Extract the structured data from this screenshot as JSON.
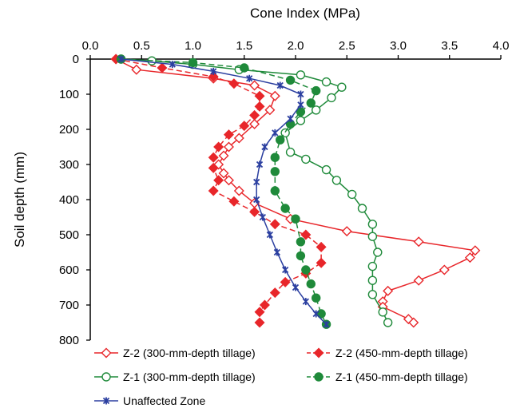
{
  "chart_data": {
    "type": "line",
    "xlabel": "Cone Index (MPa)",
    "ylabel": "Soil depth (mm)",
    "xlim": [
      0,
      4.0
    ],
    "ylim": [
      0,
      800
    ],
    "y_reversed": true,
    "x_axis_position": "top",
    "x_ticks": [
      "0.0",
      "0.5",
      "1.0",
      "1.5",
      "2.0",
      "2.5",
      "3.0",
      "3.5",
      "4.0"
    ],
    "y_ticks": [
      "0",
      "100",
      "200",
      "300",
      "400",
      "500",
      "600",
      "700",
      "800"
    ],
    "grid": false,
    "legend_position": "bottom",
    "series": [
      {
        "name": "Z-2 (300-mm-depth tillage)",
        "color": "#e8262a",
        "marker": "open-diamond",
        "dashed": false,
        "points": [
          [
            0.25,
            0
          ],
          [
            0.45,
            30
          ],
          [
            1.2,
            55
          ],
          [
            1.6,
            75
          ],
          [
            1.8,
            105
          ],
          [
            1.75,
            145
          ],
          [
            1.6,
            185
          ],
          [
            1.45,
            225
          ],
          [
            1.35,
            250
          ],
          [
            1.3,
            275
          ],
          [
            1.25,
            300
          ],
          [
            1.3,
            325
          ],
          [
            1.35,
            345
          ],
          [
            1.45,
            375
          ],
          [
            1.6,
            410
          ],
          [
            1.95,
            455
          ],
          [
            2.5,
            490
          ],
          [
            3.2,
            520
          ],
          [
            3.75,
            545
          ],
          [
            3.7,
            565
          ],
          [
            3.45,
            600
          ],
          [
            3.2,
            630
          ],
          [
            2.9,
            660
          ],
          [
            2.85,
            690
          ],
          [
            2.85,
            705
          ],
          [
            3.1,
            740
          ],
          [
            3.15,
            750
          ]
        ]
      },
      {
        "name": "Z-2 (450-mm-depth tillage)",
        "color": "#e8262a",
        "marker": "filled-diamond",
        "dashed": true,
        "points": [
          [
            0.25,
            0
          ],
          [
            0.7,
            25
          ],
          [
            1.2,
            50
          ],
          [
            1.4,
            70
          ],
          [
            1.65,
            105
          ],
          [
            1.65,
            135
          ],
          [
            1.6,
            160
          ],
          [
            1.5,
            190
          ],
          [
            1.35,
            215
          ],
          [
            1.25,
            250
          ],
          [
            1.2,
            280
          ],
          [
            1.2,
            310
          ],
          [
            1.25,
            345
          ],
          [
            1.2,
            375
          ],
          [
            1.4,
            405
          ],
          [
            1.6,
            435
          ],
          [
            1.8,
            470
          ],
          [
            2.1,
            500
          ],
          [
            2.25,
            535
          ],
          [
            2.25,
            580
          ],
          [
            2.1,
            610
          ],
          [
            1.9,
            635
          ],
          [
            1.8,
            665
          ],
          [
            1.7,
            700
          ],
          [
            1.65,
            720
          ],
          [
            1.65,
            750
          ]
        ]
      },
      {
        "name": "Z-1 (300-mm-depth tillage)",
        "color": "#1f8a3a",
        "marker": "open-circle",
        "dashed": false,
        "points": [
          [
            0.3,
            0
          ],
          [
            0.6,
            5
          ],
          [
            1.0,
            15
          ],
          [
            1.45,
            30
          ],
          [
            2.05,
            45
          ],
          [
            2.3,
            65
          ],
          [
            2.45,
            80
          ],
          [
            2.35,
            110
          ],
          [
            2.2,
            145
          ],
          [
            2.05,
            175
          ],
          [
            1.9,
            210
          ],
          [
            1.95,
            265
          ],
          [
            2.1,
            285
          ],
          [
            2.3,
            315
          ],
          [
            2.4,
            345
          ],
          [
            2.55,
            385
          ],
          [
            2.65,
            425
          ],
          [
            2.75,
            470
          ],
          [
            2.75,
            505
          ],
          [
            2.8,
            550
          ],
          [
            2.75,
            590
          ],
          [
            2.75,
            630
          ],
          [
            2.75,
            670
          ],
          [
            2.85,
            720
          ],
          [
            2.9,
            750
          ]
        ]
      },
      {
        "name": "Z-1 (450-mm-depth tillage)",
        "color": "#1f8a3a",
        "marker": "filled-circle",
        "dashed": true,
        "points": [
          [
            0.3,
            0
          ],
          [
            1.0,
            10
          ],
          [
            1.5,
            25
          ],
          [
            1.95,
            60
          ],
          [
            2.2,
            90
          ],
          [
            2.15,
            125
          ],
          [
            2.05,
            150
          ],
          [
            1.95,
            185
          ],
          [
            1.85,
            230
          ],
          [
            1.8,
            280
          ],
          [
            1.8,
            320
          ],
          [
            1.8,
            375
          ],
          [
            1.9,
            425
          ],
          [
            2.0,
            455
          ],
          [
            2.05,
            520
          ],
          [
            2.05,
            560
          ],
          [
            2.1,
            600
          ],
          [
            2.15,
            640
          ],
          [
            2.2,
            680
          ],
          [
            2.25,
            725
          ],
          [
            2.3,
            755
          ]
        ]
      },
      {
        "name": "Unaffected Zone",
        "color": "#2b3fa0",
        "marker": "x-star",
        "dashed": false,
        "points": [
          [
            0.3,
            0
          ],
          [
            0.8,
            15
          ],
          [
            1.2,
            35
          ],
          [
            1.55,
            55
          ],
          [
            1.85,
            75
          ],
          [
            2.05,
            100
          ],
          [
            2.05,
            130
          ],
          [
            1.95,
            170
          ],
          [
            1.8,
            210
          ],
          [
            1.7,
            250
          ],
          [
            1.65,
            300
          ],
          [
            1.62,
            350
          ],
          [
            1.62,
            400
          ],
          [
            1.68,
            450
          ],
          [
            1.75,
            500
          ],
          [
            1.82,
            550
          ],
          [
            1.9,
            600
          ],
          [
            2.0,
            650
          ],
          [
            2.1,
            690
          ],
          [
            2.2,
            725
          ],
          [
            2.3,
            755
          ]
        ]
      }
    ]
  }
}
